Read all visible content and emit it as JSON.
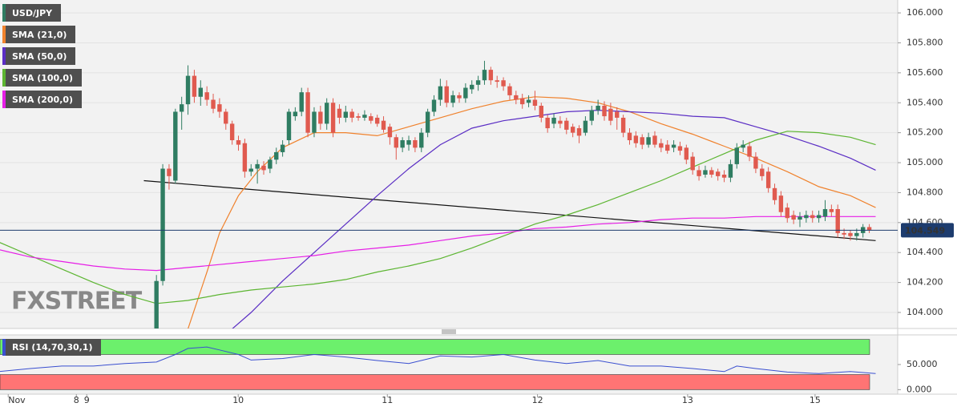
{
  "chart_data": [
    {
      "type": "candlestick",
      "name": "USD/JPY",
      "up_color": "#2f7d62",
      "down_color": "#e05a4f",
      "watermark": "FXSTREET",
      "x": [
        0,
        1,
        2,
        3,
        4,
        5,
        6,
        7,
        8,
        9,
        10,
        11,
        12,
        13,
        14,
        15,
        16,
        17,
        18,
        19,
        20,
        21,
        22,
        23,
        24,
        25,
        26,
        27,
        28,
        29,
        30,
        31,
        32,
        33,
        34,
        35,
        36,
        37,
        38,
        39,
        40,
        41,
        42,
        43,
        44,
        45,
        46,
        47,
        48,
        49,
        50,
        51,
        52,
        53,
        54,
        55,
        56,
        57,
        58,
        59,
        60,
        61,
        62,
        63,
        64,
        65,
        66,
        67,
        68,
        69,
        70,
        71,
        72,
        73,
        74,
        75,
        76,
        77,
        78,
        79,
        80,
        81,
        82,
        83,
        84,
        85,
        86,
        87,
        88,
        89,
        90,
        91,
        92,
        93,
        94,
        95,
        96,
        97,
        98,
        99,
        100,
        101,
        102,
        103,
        104,
        105,
        106,
        107,
        108,
        109,
        110,
        111,
        112,
        113
      ],
      "open": [
        103.89,
        104.21,
        104.96,
        104.88,
        105.34,
        105.39,
        105.58,
        105.44,
        105.47,
        105.42,
        105.39,
        105.34,
        105.26,
        105.15,
        105.13,
        104.94,
        104.96,
        104.98,
        104.96,
        105.02,
        105.07,
        105.15,
        105.31,
        105.34,
        105.47,
        105.2,
        105.34,
        105.26,
        105.4,
        105.36,
        105.3,
        105.34,
        105.31,
        105.3,
        105.31,
        105.3,
        105.28,
        105.24,
        105.17,
        105.1,
        105.12,
        105.15,
        105.1,
        105.2,
        105.34,
        105.42,
        105.51,
        105.4,
        105.45,
        105.43,
        105.49,
        105.52,
        105.55,
        105.62,
        105.55,
        105.55,
        105.51,
        105.45,
        105.43,
        105.4,
        105.42,
        105.38,
        105.3,
        105.26,
        105.28,
        105.28,
        105.24,
        105.23,
        105.2,
        105.28,
        105.35,
        105.38,
        105.36,
        105.34,
        105.3,
        105.2,
        105.18,
        105.17,
        105.12,
        105.18,
        105.13,
        105.12,
        105.1,
        105.11,
        105.1,
        105.04,
        104.95,
        104.92,
        104.95,
        104.94,
        104.92,
        104.9,
        104.99,
        105.1,
        105.11,
        105.04,
        104.96,
        104.94,
        104.83,
        104.78,
        104.7,
        104.65,
        104.62,
        104.63,
        104.65,
        104.63,
        104.64,
        104.69,
        104.69,
        104.53,
        104.53,
        104.51,
        104.53,
        104.57
      ],
      "high": [
        104.25,
        104.99,
        104.99,
        105.36,
        105.44,
        105.65,
        105.62,
        105.55,
        105.51,
        105.46,
        105.43,
        105.36,
        105.28,
        105.18,
        105.16,
        104.99,
        105.02,
        105.01,
        105.04,
        105.1,
        105.15,
        105.36,
        105.37,
        105.5,
        105.5,
        105.37,
        105.38,
        105.43,
        105.43,
        105.39,
        105.38,
        105.36,
        105.33,
        105.35,
        105.33,
        105.32,
        105.31,
        105.26,
        105.19,
        105.17,
        105.18,
        105.17,
        105.23,
        105.36,
        105.45,
        105.56,
        105.55,
        105.48,
        105.47,
        105.53,
        105.55,
        105.58,
        105.68,
        105.64,
        105.58,
        105.57,
        105.53,
        105.48,
        105.46,
        105.45,
        105.48,
        105.4,
        105.32,
        105.33,
        105.31,
        105.3,
        105.26,
        105.25,
        105.31,
        105.38,
        105.42,
        105.41,
        105.4,
        105.37,
        105.32,
        105.23,
        105.21,
        105.19,
        105.2,
        105.21,
        105.16,
        105.15,
        105.15,
        105.14,
        105.12,
        105.07,
        104.98,
        104.98,
        104.97,
        104.96,
        104.95,
        105.02,
        105.13,
        105.15,
        105.14,
        105.07,
        104.99,
        104.97,
        104.86,
        104.81,
        104.73,
        104.68,
        104.67,
        104.68,
        104.68,
        104.68,
        104.75,
        104.72,
        104.72,
        104.56,
        104.55,
        104.56,
        104.59,
        104.59
      ],
      "low": [
        103.89,
        104.18,
        104.82,
        104.86,
        105.22,
        105.32,
        105.4,
        105.38,
        105.38,
        105.33,
        105.3,
        105.22,
        105.12,
        105.08,
        104.9,
        104.91,
        104.86,
        104.92,
        104.93,
        104.99,
        105.04,
        105.12,
        105.28,
        105.31,
        105.17,
        105.17,
        105.22,
        105.22,
        105.17,
        105.26,
        105.27,
        105.27,
        105.28,
        105.28,
        105.26,
        105.24,
        105.2,
        105.12,
        105.02,
        105.07,
        105.08,
        105.07,
        105.07,
        105.17,
        105.31,
        105.38,
        105.37,
        105.37,
        105.4,
        105.4,
        105.46,
        105.48,
        105.52,
        105.52,
        105.5,
        105.48,
        105.42,
        105.39,
        105.36,
        105.37,
        105.35,
        105.27,
        105.2,
        105.23,
        105.23,
        105.19,
        105.17,
        105.13,
        105.18,
        105.25,
        105.32,
        105.28,
        105.25,
        105.22,
        105.17,
        105.12,
        105.1,
        105.09,
        105.1,
        105.1,
        105.07,
        105.06,
        105.07,
        105.05,
        104.99,
        104.92,
        104.88,
        104.9,
        104.9,
        104.88,
        104.87,
        104.87,
        104.96,
        105.07,
        105.01,
        104.93,
        104.88,
        104.8,
        104.72,
        104.64,
        104.6,
        104.59,
        104.57,
        104.6,
        104.6,
        104.6,
        104.61,
        104.64,
        104.5,
        104.49,
        104.48,
        104.48,
        104.5,
        104.53
      ],
      "close": [
        104.21,
        104.96,
        104.91,
        105.34,
        105.39,
        105.58,
        105.44,
        105.5,
        105.42,
        105.36,
        105.34,
        105.26,
        105.15,
        105.12,
        104.94,
        104.96,
        104.99,
        104.95,
        105.02,
        105.07,
        105.12,
        105.34,
        105.34,
        105.47,
        105.2,
        105.34,
        105.26,
        105.4,
        105.2,
        105.3,
        105.34,
        105.3,
        105.3,
        105.32,
        105.28,
        105.26,
        105.22,
        105.17,
        105.1,
        105.15,
        105.15,
        105.1,
        105.2,
        105.34,
        105.42,
        105.51,
        105.4,
        105.45,
        105.43,
        105.5,
        105.52,
        105.55,
        105.62,
        105.55,
        105.54,
        105.51,
        105.45,
        105.42,
        105.39,
        105.42,
        105.38,
        105.3,
        105.23,
        105.3,
        105.26,
        105.22,
        105.2,
        105.18,
        105.28,
        105.35,
        105.38,
        105.31,
        105.28,
        105.3,
        105.2,
        105.15,
        105.13,
        105.12,
        105.17,
        105.12,
        105.1,
        105.08,
        105.12,
        105.08,
        105.02,
        104.95,
        104.91,
        104.95,
        104.92,
        104.91,
        104.9,
        104.99,
        105.1,
        105.12,
        105.04,
        104.96,
        104.91,
        104.83,
        104.75,
        104.67,
        104.63,
        104.62,
        104.64,
        104.65,
        104.63,
        104.65,
        104.69,
        104.67,
        104.53,
        104.52,
        104.51,
        104.53,
        104.57,
        104.55
      ],
      "overlays": [
        {
          "name": "SMA (21,0)",
          "color": "#f0822d",
          "x": [
            5,
            8,
            10,
            13,
            16,
            20,
            25,
            30,
            35,
            40,
            45,
            50,
            55,
            60,
            65,
            70,
            75,
            80,
            85,
            90,
            95,
            100,
            105,
            110,
            114
          ],
          "values": [
            103.89,
            104.27,
            104.53,
            104.78,
            104.94,
            105.1,
            105.2,
            105.2,
            105.18,
            105.24,
            105.3,
            105.36,
            105.41,
            105.44,
            105.43,
            105.4,
            105.34,
            105.26,
            105.19,
            105.11,
            105.03,
            104.94,
            104.84,
            104.78,
            104.7
          ]
        },
        {
          "name": "SMA (50,0)",
          "color": "#5a2dc4",
          "x": [
            12,
            15,
            20,
            25,
            30,
            35,
            40,
            45,
            50,
            55,
            60,
            65,
            70,
            75,
            80,
            85,
            90,
            95,
            100,
            105,
            110,
            114
          ],
          "values": [
            103.89,
            104.0,
            104.21,
            104.4,
            104.59,
            104.78,
            104.96,
            105.12,
            105.23,
            105.28,
            105.31,
            105.34,
            105.35,
            105.34,
            105.33,
            105.31,
            105.3,
            105.24,
            105.18,
            105.11,
            105.03,
            104.95
          ]
        },
        {
          "name": "SMA (100,0)",
          "color": "#5cb531",
          "x": [
            -25,
            -20,
            -15,
            -10,
            -5,
            0,
            5,
            10,
            15,
            20,
            25,
            30,
            35,
            40,
            45,
            50,
            55,
            60,
            65,
            70,
            75,
            80,
            85,
            90,
            95,
            100,
            105,
            110,
            114
          ],
          "values": [
            104.47,
            104.38,
            104.29,
            104.2,
            104.12,
            104.06,
            104.08,
            104.12,
            104.15,
            104.17,
            104.19,
            104.22,
            104.27,
            104.31,
            104.36,
            104.43,
            104.51,
            104.59,
            104.65,
            104.72,
            104.8,
            104.88,
            104.97,
            105.06,
            105.15,
            105.21,
            105.2,
            105.17,
            105.12
          ]
        },
        {
          "name": "SMA (200,0)",
          "color": "#e61ee6",
          "x": [
            -25,
            -20,
            -15,
            -10,
            -5,
            0,
            5,
            10,
            15,
            20,
            25,
            30,
            35,
            40,
            45,
            50,
            55,
            60,
            65,
            70,
            75,
            80,
            85,
            90,
            95,
            100,
            105,
            110,
            114
          ],
          "values": [
            104.42,
            104.37,
            104.34,
            104.31,
            104.29,
            104.28,
            104.3,
            104.32,
            104.34,
            104.36,
            104.38,
            104.41,
            104.43,
            104.45,
            104.48,
            104.51,
            104.53,
            104.56,
            104.57,
            104.59,
            104.6,
            104.62,
            104.63,
            104.63,
            104.64,
            104.64,
            104.64,
            104.64,
            104.64
          ]
        }
      ],
      "trendline": {
        "color": "#111111",
        "x": [
          -2,
          114
        ],
        "values": [
          104.88,
          104.48
        ]
      },
      "last_price": 104.549,
      "last_price_color": "#1d3c6e",
      "xlim": [
        -24.8,
        117.5
      ],
      "ylim": [
        103.893,
        106.086
      ],
      "yticks": [
        {
          "value": 104,
          "label": "104.000"
        },
        {
          "value": 104.2,
          "label": "104.200"
        },
        {
          "value": 104.4,
          "label": "104.400"
        },
        {
          "value": 104.6,
          "label": "104.600"
        },
        {
          "value": 104.8,
          "label": "104.800"
        },
        {
          "value": 105,
          "label": "105.000"
        },
        {
          "value": 105.2,
          "label": "105.200"
        },
        {
          "value": 105.4,
          "label": "105.400"
        },
        {
          "value": 105.6,
          "label": "105.600"
        },
        {
          "value": 105.8,
          "label": "105.800"
        },
        {
          "value": 106,
          "label": "106.000"
        }
      ],
      "grid": true
    },
    {
      "type": "line",
      "name": "RSI (14,70,30,1)",
      "color": "#3a4fd0",
      "x": [
        -25,
        -20,
        -15,
        -10,
        -5,
        0,
        3,
        5,
        8,
        10,
        13,
        15,
        20,
        25,
        30,
        35,
        40,
        45,
        50,
        55,
        60,
        65,
        70,
        75,
        80,
        85,
        90,
        92,
        95,
        100,
        105,
        110,
        114
      ],
      "values": [
        36,
        42,
        47,
        47,
        52,
        55,
        70,
        82,
        85,
        79,
        70,
        59,
        62,
        70,
        65,
        58,
        52,
        67,
        65,
        70,
        59,
        52,
        58,
        47,
        47,
        42,
        36,
        47,
        42,
        35,
        32,
        36,
        32
      ],
      "bands": [
        {
          "from": 70,
          "to": 100,
          "color": "#6cf06c"
        },
        {
          "from": 0,
          "to": 30,
          "color": "#ff7474"
        }
      ],
      "xlim": [
        -24.8,
        117.5
      ],
      "ylim": [
        -9,
        109
      ],
      "yticks": [
        {
          "value": 50,
          "label": "50.000"
        },
        {
          "value": 0,
          "label": "0.000"
        }
      ],
      "xticks": [
        {
          "value": -23.5,
          "label": "Nov"
        },
        {
          "value": -12.7,
          "label": "8"
        },
        {
          "value": -11.05,
          "label": "9"
        },
        {
          "value": 12.96,
          "label": "10"
        },
        {
          "value": 36.6,
          "label": "11"
        },
        {
          "value": 60.4,
          "label": "12"
        },
        {
          "value": 84.2,
          "label": "13"
        },
        {
          "value": 104.4,
          "label": "15"
        }
      ]
    }
  ]
}
